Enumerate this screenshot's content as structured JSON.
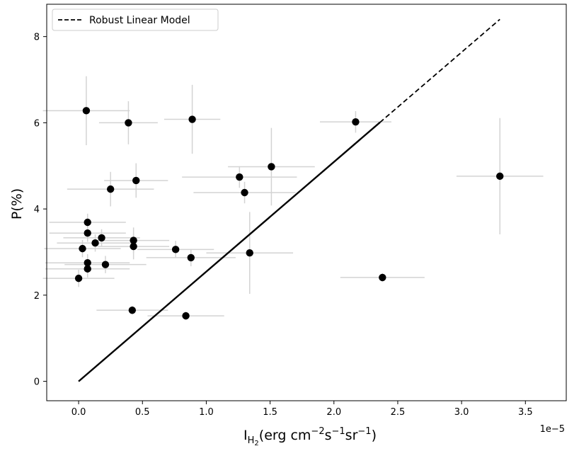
{
  "chart_data": {
    "type": "scatter",
    "xlabel": "I",
    "xlabel_sub": "H",
    "xlabel_subsub": "2",
    "xlabel_units": "(erg cm",
    "xlabel_exp1": "−2",
    "xlabel_mid": "s",
    "xlabel_exp2": "−1",
    "xlabel_end": "sr",
    "xlabel_exp3": "−1",
    "xlabel_close": ")",
    "ylabel": "P(%)",
    "x_offset_label": "1e−5",
    "xlim": [
      -0.25,
      3.82
    ],
    "ylim": [
      -0.45,
      8.75
    ],
    "x_ticks": [
      0.0,
      0.5,
      1.0,
      1.5,
      2.0,
      2.5,
      3.0,
      3.5
    ],
    "x_tick_labels": [
      "0.0",
      "0.5",
      "1.0",
      "1.5",
      "2.0",
      "2.5",
      "3.0",
      "3.5"
    ],
    "y_ticks": [
      0,
      2,
      4,
      6,
      8
    ],
    "y_tick_labels": [
      "0",
      "2",
      "4",
      "6",
      "8"
    ],
    "grid": false,
    "legend": {
      "position": "top-left",
      "entries": [
        {
          "label": "Robust Linear Model",
          "style": "dashed"
        }
      ]
    },
    "colors": {
      "points": "#000000",
      "errorbars": "#d3d3d3",
      "fit": "#000000"
    },
    "fit_line": {
      "x": [
        0.0,
        3.3
      ],
      "y": [
        0.0,
        8.4
      ],
      "solid_until_x": 2.36
    },
    "series": [
      {
        "points": [
          {
            "x": 0.06,
            "y": 6.28,
            "xerr": 0.34,
            "yerr": 0.8
          },
          {
            "x": 0.39,
            "y": 6.0,
            "xerr": 0.23,
            "yerr": 0.5
          },
          {
            "x": 0.89,
            "y": 6.08,
            "xerr": 0.22,
            "yerr": 0.8
          },
          {
            "x": 2.17,
            "y": 6.02,
            "xerr": 0.28,
            "yerr": 0.25
          },
          {
            "x": 1.51,
            "y": 4.98,
            "xerr": 0.34,
            "yerr": 0.9
          },
          {
            "x": 1.26,
            "y": 4.74,
            "xerr": 0.45,
            "yerr": 0.25
          },
          {
            "x": 1.3,
            "y": 4.38,
            "xerr": 0.4,
            "yerr": 0.25
          },
          {
            "x": 0.45,
            "y": 4.66,
            "xerr": 0.25,
            "yerr": 0.4
          },
          {
            "x": 0.25,
            "y": 4.46,
            "xerr": 0.34,
            "yerr": 0.4
          },
          {
            "x": 3.3,
            "y": 4.76,
            "xerr": 0.34,
            "yerr": 1.35
          },
          {
            "x": 0.07,
            "y": 3.69,
            "xerr": 0.3,
            "yerr": 0.2
          },
          {
            "x": 0.07,
            "y": 3.44,
            "xerr": 0.3,
            "yerr": 0.2
          },
          {
            "x": 0.18,
            "y": 3.33,
            "xerr": 0.3,
            "yerr": 0.2
          },
          {
            "x": 0.13,
            "y": 3.21,
            "xerr": 0.3,
            "yerr": 0.2
          },
          {
            "x": 0.03,
            "y": 3.08,
            "xerr": 0.3,
            "yerr": 0.2
          },
          {
            "x": 0.43,
            "y": 3.27,
            "xerr": 0.28,
            "yerr": 0.3
          },
          {
            "x": 0.43,
            "y": 3.13,
            "xerr": 0.28,
            "yerr": 0.3
          },
          {
            "x": 0.76,
            "y": 3.06,
            "xerr": 0.3,
            "yerr": 0.2
          },
          {
            "x": 0.88,
            "y": 2.87,
            "xerr": 0.35,
            "yerr": 0.2
          },
          {
            "x": 1.34,
            "y": 2.98,
            "xerr": 0.34,
            "yerr": 0.95
          },
          {
            "x": 0.07,
            "y": 2.75,
            "xerr": 0.33,
            "yerr": 0.2
          },
          {
            "x": 0.21,
            "y": 2.71,
            "xerr": 0.32,
            "yerr": 0.2
          },
          {
            "x": 0.07,
            "y": 2.61,
            "xerr": 0.33,
            "yerr": 0.2
          },
          {
            "x": 0.0,
            "y": 2.39,
            "xerr": 0.28,
            "yerr": 0.2
          },
          {
            "x": 2.38,
            "y": 2.41,
            "xerr": 0.33,
            "yerr": 0.1
          },
          {
            "x": 0.42,
            "y": 1.65,
            "xerr": 0.28,
            "yerr": 0.1
          },
          {
            "x": 0.84,
            "y": 1.52,
            "xerr": 0.3,
            "yerr": 0.1
          }
        ]
      }
    ]
  }
}
